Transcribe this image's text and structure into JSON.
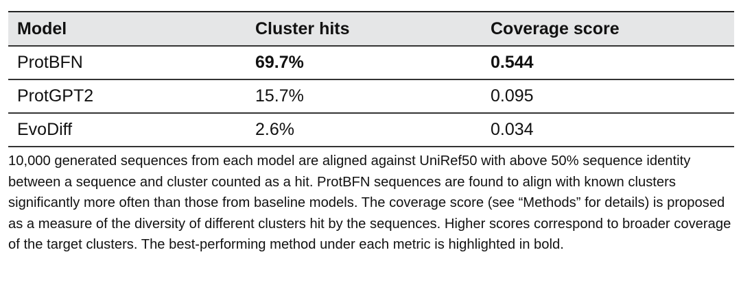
{
  "table": {
    "headers": [
      "Model",
      "Cluster hits",
      "Coverage score"
    ],
    "rows": [
      {
        "model": "ProtBFN",
        "cluster_hits": "69.7%",
        "coverage_score": "0.544",
        "bold": true
      },
      {
        "model": "ProtGPT2",
        "cluster_hits": "15.7%",
        "coverage_score": "0.095",
        "bold": false
      },
      {
        "model": "EvoDiff",
        "cluster_hits": "2.6%",
        "coverage_score": "0.034",
        "bold": false
      }
    ]
  },
  "caption": "10,000 generated sequences from each model are aligned against UniRef50 with above 50% sequence identity between a sequence and cluster counted as a hit. ProtBFN sequences are found to align with known clusters significantly more often than those from baseline models. The coverage score (see “Methods” for details) is proposed as a measure of the diversity of different clusters hit by the sequences. Higher scores correspond to broader coverage of the target clusters. The best-performing method under each metric is highlighted in bold."
}
